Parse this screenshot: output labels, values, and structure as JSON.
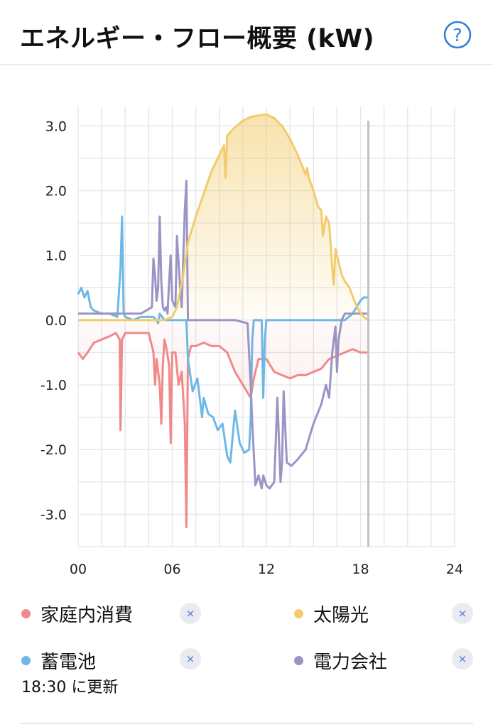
{
  "header": {
    "title": "エネルギー・フロー概要 (kW)",
    "help_icon": "help-icon"
  },
  "chart_data": {
    "type": "line",
    "title": "エネルギー・フロー概要 (kW)",
    "xlabel": "",
    "ylabel": "kW",
    "xlim": [
      0,
      24
    ],
    "ylim": [
      -3.5,
      3.3
    ],
    "x_ticks": [
      0,
      6,
      12,
      18,
      24
    ],
    "x_tick_labels": [
      "00",
      "06",
      "12",
      "18",
      "24"
    ],
    "y_ticks": [
      3,
      2,
      1,
      0,
      -1,
      -2,
      -3
    ],
    "y_tick_labels": [
      "3.0",
      "2.0",
      "1.0",
      "0.0",
      "-1.0",
      "-2.0",
      "-3.0"
    ],
    "grid": true,
    "current_time_marker": 18.5,
    "series": [
      {
        "name": "太陽光",
        "color": "#f2cc6b",
        "fill": "positive",
        "x": [
          0,
          5.5,
          6.0,
          6.3,
          6.7,
          7.0,
          7.5,
          8.0,
          8.5,
          9.0,
          9.3,
          9.4,
          9.5,
          10.0,
          10.5,
          11.0,
          11.5,
          12.0,
          12.5,
          13.0,
          13.5,
          14.0,
          14.5,
          14.6,
          14.7,
          15.0,
          15.3,
          15.5,
          15.6,
          15.8,
          16.0,
          16.2,
          16.3,
          16.4,
          16.6,
          16.8,
          17.0,
          17.3,
          17.6,
          17.9,
          18.2,
          18.5
        ],
        "values": [
          0.0,
          0.0,
          0.05,
          0.2,
          0.7,
          1.2,
          1.6,
          1.95,
          2.3,
          2.55,
          2.7,
          2.2,
          2.85,
          2.98,
          3.08,
          3.14,
          3.16,
          3.18,
          3.12,
          3.0,
          2.8,
          2.55,
          2.25,
          2.35,
          2.2,
          2.0,
          1.75,
          1.7,
          1.3,
          1.6,
          1.5,
          0.8,
          0.55,
          1.1,
          0.9,
          0.7,
          0.6,
          0.5,
          0.3,
          0.15,
          0.05,
          0.0
        ]
      },
      {
        "name": "家庭内消費",
        "color": "#f08a8a",
        "fill": "negative",
        "x": [
          0,
          0.3,
          0.6,
          1.0,
          1.5,
          2.0,
          2.4,
          2.65,
          2.7,
          2.8,
          3.0,
          3.5,
          4.0,
          4.5,
          4.8,
          4.9,
          5.0,
          5.2,
          5.3,
          5.4,
          5.5,
          5.6,
          5.8,
          5.9,
          6.0,
          6.2,
          6.4,
          6.6,
          6.8,
          6.9,
          7.0,
          7.2,
          7.5,
          8.0,
          8.5,
          9.0,
          9.5,
          10.0,
          10.5,
          11.0,
          11.2,
          11.5,
          12.0,
          12.5,
          13.0,
          13.5,
          14.0,
          14.5,
          15.0,
          15.5,
          16.0,
          16.5,
          17.0,
          17.5,
          18.0,
          18.5
        ],
        "values": [
          -0.5,
          -0.6,
          -0.5,
          -0.35,
          -0.3,
          -0.25,
          -0.2,
          -0.3,
          -1.7,
          -0.3,
          -0.2,
          -0.2,
          -0.2,
          -0.2,
          -0.5,
          -1.0,
          -0.6,
          -1.0,
          -1.6,
          -0.7,
          -0.3,
          -0.4,
          -0.7,
          -1.9,
          -0.5,
          -0.5,
          -1.0,
          -0.8,
          -1.6,
          -3.2,
          -0.6,
          -0.4,
          -0.4,
          -0.35,
          -0.4,
          -0.4,
          -0.5,
          -0.8,
          -1.0,
          -1.2,
          -0.9,
          -0.6,
          -0.6,
          -0.8,
          -0.85,
          -0.9,
          -0.85,
          -0.85,
          -0.8,
          -0.75,
          -0.6,
          -0.55,
          -0.5,
          -0.45,
          -0.5,
          -0.5
        ]
      },
      {
        "name": "蓄電池",
        "color": "#6db8e6",
        "fill": "none",
        "x": [
          0,
          0.2,
          0.4,
          0.6,
          0.8,
          1.0,
          1.5,
          2.0,
          2.5,
          2.7,
          2.8,
          2.9,
          3.0,
          3.5,
          4.0,
          4.5,
          4.8,
          5.0,
          5.1,
          5.2,
          5.5,
          6.0,
          6.5,
          6.9,
          7.0,
          7.3,
          7.6,
          7.9,
          8.0,
          8.3,
          8.6,
          8.9,
          9.2,
          9.5,
          9.7,
          10.0,
          10.3,
          10.6,
          10.9,
          11.0,
          11.1,
          11.2,
          11.4,
          11.6,
          11.7,
          11.8,
          11.9,
          12.0,
          12.1,
          12.3,
          12.5,
          13.0,
          14.0,
          15.0,
          16.0,
          16.5,
          17.0,
          17.5,
          18.0,
          18.2,
          18.5
        ],
        "values": [
          0.4,
          0.5,
          0.35,
          0.45,
          0.2,
          0.15,
          0.1,
          0.1,
          0.05,
          0.8,
          1.6,
          0.1,
          0.05,
          0.0,
          0.05,
          0.05,
          0.05,
          0.0,
          -0.05,
          0.1,
          0.0,
          0.0,
          0.0,
          0.0,
          -0.6,
          -1.1,
          -0.9,
          -1.5,
          -1.2,
          -1.45,
          -1.5,
          -1.7,
          -1.6,
          -2.1,
          -2.2,
          -1.4,
          -1.9,
          -2.05,
          -2.0,
          -1.5,
          -0.3,
          0.0,
          0.0,
          0.0,
          0.0,
          -1.2,
          -0.3,
          0.0,
          0.0,
          0.0,
          0.0,
          0.0,
          0.0,
          0.0,
          0.0,
          0.0,
          0.0,
          0.1,
          0.3,
          0.35,
          0.35
        ]
      },
      {
        "name": "電力会社",
        "color": "#9b94c4",
        "fill": "none",
        "x": [
          0,
          1.0,
          2.0,
          3.0,
          4.0,
          4.7,
          4.8,
          4.9,
          5.0,
          5.1,
          5.2,
          5.3,
          5.4,
          5.5,
          5.6,
          5.7,
          5.8,
          5.9,
          6.0,
          6.2,
          6.3,
          6.5,
          6.6,
          6.8,
          6.9,
          7.0,
          7.5,
          8.0,
          9.0,
          10.0,
          10.8,
          11.0,
          11.1,
          11.3,
          11.5,
          11.7,
          11.8,
          12.0,
          12.2,
          12.5,
          12.7,
          12.9,
          13.0,
          13.1,
          13.3,
          13.6,
          14.0,
          14.5,
          15.0,
          15.5,
          15.8,
          16.0,
          16.2,
          16.4,
          16.5,
          16.6,
          16.8,
          17.0,
          17.5,
          18.0,
          18.5
        ],
        "values": [
          0.1,
          0.1,
          0.1,
          0.1,
          0.1,
          0.2,
          0.95,
          0.7,
          0.3,
          0.5,
          1.6,
          0.6,
          0.2,
          0.15,
          0.2,
          0.1,
          0.6,
          1.0,
          0.3,
          0.2,
          1.3,
          0.5,
          0.2,
          1.7,
          2.15,
          0.0,
          0.0,
          0.0,
          0.0,
          0.0,
          -0.05,
          -1.0,
          -1.6,
          -2.55,
          -2.4,
          -2.6,
          -2.4,
          -2.55,
          -2.6,
          -2.5,
          -1.2,
          -2.5,
          -2.2,
          -1.1,
          -2.2,
          -2.25,
          -2.15,
          -2.0,
          -1.6,
          -1.3,
          -1.0,
          -1.2,
          -0.5,
          -0.1,
          -0.8,
          -0.3,
          0.0,
          0.1,
          0.1,
          0.1,
          0.1
        ]
      }
    ]
  },
  "legend": {
    "items": [
      {
        "label": "家庭内消費",
        "color": "#f08a8a",
        "remove_icon": "close-icon",
        "remove_glyph": "×"
      },
      {
        "label": "太陽光",
        "color": "#f2cc6b",
        "remove_icon": "close-icon",
        "remove_glyph": "×"
      },
      {
        "label": "蓄電池",
        "color": "#6db8e6",
        "remove_icon": "close-icon",
        "remove_glyph": "×"
      },
      {
        "label": "電力会社",
        "color": "#9b94c4",
        "remove_icon": "close-icon",
        "remove_glyph": "×"
      }
    ]
  },
  "status": {
    "updated_text": "18:30 に更新"
  }
}
